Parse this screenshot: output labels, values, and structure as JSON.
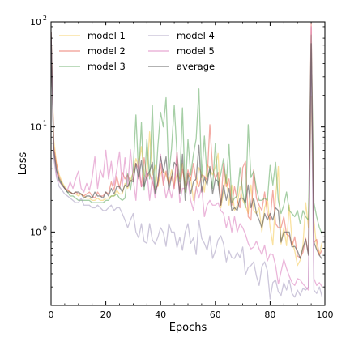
{
  "chart_data": {
    "type": "line",
    "title": "",
    "xlabel": "Epochs",
    "ylabel": "Loss",
    "xlim": [
      0,
      100
    ],
    "ylim": [
      0.2,
      100
    ],
    "yscale": "log",
    "grid": false,
    "legend": {
      "placement": "top-left",
      "columns": 2
    },
    "x_ticks": [
      0,
      20,
      40,
      60,
      80,
      100
    ],
    "x_tick_labels": [
      "0",
      "20",
      "40",
      "60",
      "80",
      "100"
    ],
    "y_ticks": [
      1,
      10,
      100
    ],
    "y_tick_labels": [
      "10",
      "10",
      "10"
    ],
    "y_tick_exponents": [
      "0",
      "1",
      "2"
    ],
    "epochs": [
      0,
      1,
      2,
      3,
      4,
      5,
      6,
      7,
      8,
      9,
      10,
      11,
      12,
      13,
      14,
      15,
      16,
      17,
      18,
      19,
      20,
      21,
      22,
      23,
      24,
      25,
      26,
      27,
      28,
      29,
      30,
      31,
      32,
      33,
      34,
      35,
      36,
      37,
      38,
      39,
      40,
      41,
      42,
      43,
      44,
      45,
      46,
      47,
      48,
      49,
      50,
      51,
      52,
      53,
      54,
      55,
      56,
      57,
      58,
      59,
      60,
      61,
      62,
      63,
      64,
      65,
      66,
      67,
      68,
      69,
      70,
      71,
      72,
      73,
      74,
      75,
      76,
      77,
      78,
      79,
      80,
      81,
      82,
      83,
      84,
      85,
      86,
      87,
      88,
      89,
      90,
      91,
      92,
      93,
      94,
      95,
      96,
      97,
      98,
      99
    ],
    "series": [
      {
        "name": "model 1",
        "color": "#f5c542",
        "values": [
          80,
          7.5,
          4.5,
          3.5,
          3.0,
          2.7,
          2.5,
          2.4,
          2.3,
          2.3,
          2.2,
          2.3,
          2.2,
          2.1,
          2.1,
          2.0,
          2.0,
          2.1,
          2.0,
          2.0,
          2.1,
          2.1,
          2.2,
          2.2,
          2.5,
          2.3,
          2.3,
          2.9,
          2.6,
          3.1,
          3.7,
          5.0,
          4.2,
          6.5,
          3.5,
          3.2,
          9.0,
          3.5,
          4.3,
          2.7,
          3.6,
          3.9,
          3.5,
          2.9,
          3.9,
          2.8,
          3.6,
          3.2,
          4.5,
          2.4,
          3.5,
          3.3,
          2.0,
          2.6,
          4.1,
          3.6,
          2.4,
          4.4,
          4.0,
          3.5,
          4.2,
          5.6,
          1.7,
          2.4,
          3.5,
          1.8,
          2.8,
          1.6,
          1.8,
          2.7,
          2.0,
          1.8,
          1.5,
          2.8,
          1.6,
          1.5,
          1.7,
          1.0,
          1.7,
          2.1,
          1.1,
          0.75,
          2.1,
          4.2,
          0.77,
          1.1,
          0.74,
          1.8,
          0.83,
          0.66,
          0.48,
          0.54,
          0.75,
          1.9,
          1.1,
          19.5,
          1.3,
          0.71,
          0.62,
          0.8
        ]
      },
      {
        "name": "model 2",
        "color": "#e8584a",
        "values": [
          80,
          6.5,
          4.4,
          3.3,
          2.9,
          2.6,
          2.5,
          2.4,
          2.3,
          2.4,
          2.3,
          2.3,
          2.2,
          2.3,
          2.4,
          2.2,
          2.1,
          2.4,
          2.2,
          2.2,
          2.4,
          2.3,
          3.0,
          2.5,
          3.4,
          2.6,
          3.7,
          3.2,
          3.5,
          3.0,
          3.2,
          4.5,
          4.0,
          2.7,
          5.1,
          3.3,
          3.6,
          3.0,
          2.5,
          2.8,
          4.5,
          2.8,
          3.8,
          2.8,
          3.4,
          2.6,
          5.8,
          2.4,
          4.0,
          2.8,
          3.9,
          3.1,
          4.5,
          3.1,
          2.7,
          3.5,
          3.4,
          3.1,
          10.5,
          4.0,
          3.2,
          3.7,
          1.8,
          4.5,
          2.7,
          3.2,
          1.8,
          2.7,
          2.0,
          1.7,
          4.1,
          4.7,
          1.4,
          1.3,
          3.9,
          2.1,
          1.8,
          1.6,
          2.4,
          1.5,
          1.3,
          2.5,
          1.2,
          1.1,
          1.1,
          1.4,
          0.95,
          0.92,
          0.73,
          0.9,
          0.59,
          0.57,
          0.64,
          0.87,
          0.62,
          97,
          0.79,
          0.85,
          0.6,
          0.68
        ]
      },
      {
        "name": "model 3",
        "color": "#4ea04e",
        "values": [
          80,
          5.5,
          3.8,
          3.2,
          2.9,
          2.6,
          2.4,
          2.2,
          2.2,
          2.1,
          2.0,
          2.0,
          2.0,
          2.0,
          2.0,
          1.9,
          1.9,
          1.9,
          1.9,
          1.9,
          2.0,
          2.0,
          2.2,
          2.2,
          2.3,
          2.1,
          2.0,
          2.1,
          3.6,
          2.5,
          3.9,
          13.0,
          3.4,
          11.0,
          2.5,
          7.6,
          3.2,
          16.0,
          2.4,
          6.5,
          13.8,
          10.0,
          19.0,
          3.5,
          6.2,
          16.0,
          5.5,
          3.0,
          15.2,
          2.4,
          7.6,
          3.5,
          5.5,
          7.7,
          23.0,
          3.3,
          8.2,
          3.3,
          3.9,
          2.6,
          7.0,
          2.8,
          3.6,
          5.0,
          2.9,
          6.8,
          1.9,
          2.1,
          2.2,
          4.1,
          2.4,
          1.7,
          10.5,
          3.3,
          3.8,
          2.6,
          2.0,
          2.0,
          2.1,
          2.0,
          4.3,
          2.8,
          4.6,
          2.0,
          1.5,
          1.8,
          2.4,
          1.6,
          1.5,
          1.4,
          1.6,
          1.2,
          1.6,
          1.4,
          1.3,
          75,
          1.9,
          1.4,
          1.1,
          0.95
        ]
      },
      {
        "name": "model 4",
        "color": "#9b8fb7",
        "values": [
          80,
          5.0,
          3.3,
          2.7,
          2.5,
          2.3,
          2.2,
          2.1,
          2.0,
          1.9,
          1.9,
          2.1,
          1.8,
          1.8,
          1.8,
          1.7,
          1.7,
          1.8,
          1.7,
          1.6,
          1.6,
          1.7,
          1.8,
          1.6,
          1.7,
          1.7,
          1.5,
          1.3,
          1.1,
          1.3,
          1.5,
          1.0,
          0.88,
          1.2,
          0.81,
          0.78,
          1.2,
          0.84,
          0.77,
          0.89,
          1.1,
          0.99,
          0.73,
          1.2,
          1.0,
          1.0,
          0.71,
          0.89,
          0.67,
          1.0,
          1.2,
          0.78,
          0.88,
          0.61,
          1.3,
          0.87,
          0.78,
          0.67,
          0.92,
          0.56,
          0.66,
          0.84,
          0.92,
          0.77,
          0.52,
          0.66,
          0.57,
          0.56,
          0.64,
          0.57,
          0.72,
          0.39,
          0.46,
          0.48,
          0.52,
          0.38,
          0.31,
          0.47,
          0.52,
          0.43,
          0.23,
          0.33,
          0.35,
          0.27,
          0.25,
          0.33,
          0.28,
          0.35,
          0.26,
          0.24,
          0.28,
          0.25,
          0.29,
          0.28,
          0.3,
          35,
          0.28,
          0.26,
          0.3,
          0.24
        ]
      },
      {
        "name": "model 5",
        "color": "#d86eb5",
        "values": [
          80,
          6.0,
          3.5,
          3.0,
          2.8,
          2.6,
          2.5,
          3.0,
          2.6,
          3.2,
          3.8,
          2.6,
          2.4,
          2.9,
          2.5,
          3.3,
          5.2,
          2.6,
          3.9,
          3.3,
          6.0,
          3.2,
          4.7,
          2.8,
          3.9,
          5.8,
          2.7,
          5.1,
          2.7,
          6.1,
          3.2,
          2.0,
          5.0,
          2.7,
          3.0,
          3.8,
          2.0,
          3.3,
          2.1,
          3.0,
          5.5,
          3.1,
          2.1,
          2.7,
          2.1,
          2.9,
          5.8,
          1.9,
          2.6,
          2.6,
          3.0,
          2.0,
          1.6,
          2.7,
          2.1,
          2.7,
          1.4,
          1.8,
          2.0,
          1.8,
          1.8,
          1.9,
          1.6,
          1.5,
          1.1,
          1.4,
          1.0,
          1.4,
          1.0,
          1.2,
          1.1,
          0.95,
          0.78,
          0.69,
          0.72,
          0.82,
          0.69,
          0.61,
          0.75,
          0.53,
          0.62,
          0.61,
          0.48,
          0.32,
          0.42,
          0.55,
          0.45,
          0.38,
          0.33,
          0.31,
          0.36,
          0.35,
          0.32,
          0.3,
          0.28,
          90,
          0.36,
          0.31,
          0.33,
          0.3
        ]
      },
      {
        "name": "average",
        "color": "#555555",
        "values": [
          80,
          6.1,
          3.9,
          3.1,
          2.8,
          2.6,
          2.4,
          2.4,
          2.3,
          2.4,
          2.4,
          2.3,
          2.1,
          2.2,
          2.2,
          2.1,
          2.4,
          2.2,
          2.2,
          2.1,
          2.4,
          2.2,
          2.6,
          2.3,
          2.7,
          2.7,
          2.4,
          2.8,
          2.7,
          3.1,
          3.0,
          4.5,
          3.2,
          4.8,
          2.7,
          3.4,
          3.8,
          4.6,
          2.3,
          3.0,
          5.2,
          3.7,
          5.2,
          2.5,
          3.3,
          4.6,
          4.2,
          2.3,
          5.5,
          2.0,
          3.6,
          2.3,
          3.0,
          3.2,
          6.7,
          2.4,
          3.3,
          2.8,
          4.2,
          2.3,
          3.2,
          3.0,
          1.8,
          2.8,
          2.0,
          2.6,
          1.6,
          1.7,
          1.6,
          2.1,
          2.1,
          1.9,
          2.8,
          1.7,
          2.1,
          1.5,
          1.3,
          1.1,
          1.5,
          1.3,
          1.5,
          1.3,
          1.7,
          1.6,
          0.8,
          1.0,
          1.0,
          1.0,
          0.72,
          0.73,
          0.66,
          0.56,
          0.71,
          0.85,
          0.6,
          62,
          0.8,
          0.68,
          0.6,
          0.55
        ]
      }
    ]
  }
}
